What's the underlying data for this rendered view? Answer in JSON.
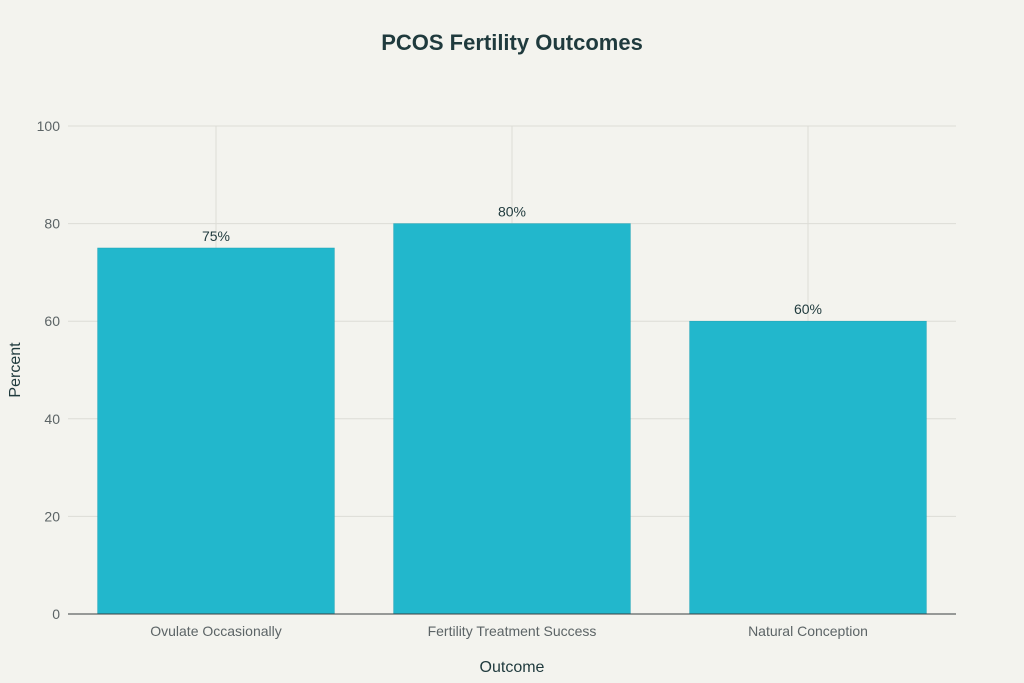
{
  "chart_data": {
    "type": "bar",
    "title": "PCOS Fertility Outcomes",
    "xlabel": "Outcome",
    "ylabel": "Percent",
    "categories": [
      "Ovulate Occasionally",
      "Fertility Treatment Success",
      "Natural Conception"
    ],
    "values": [
      75,
      80,
      60
    ],
    "data_labels": [
      "75%",
      "80%",
      "60%"
    ],
    "ylim": [
      0,
      100
    ],
    "yticks": [
      0,
      20,
      40,
      60,
      80,
      100
    ],
    "grid": true,
    "bar_color": "#22b7cc"
  }
}
